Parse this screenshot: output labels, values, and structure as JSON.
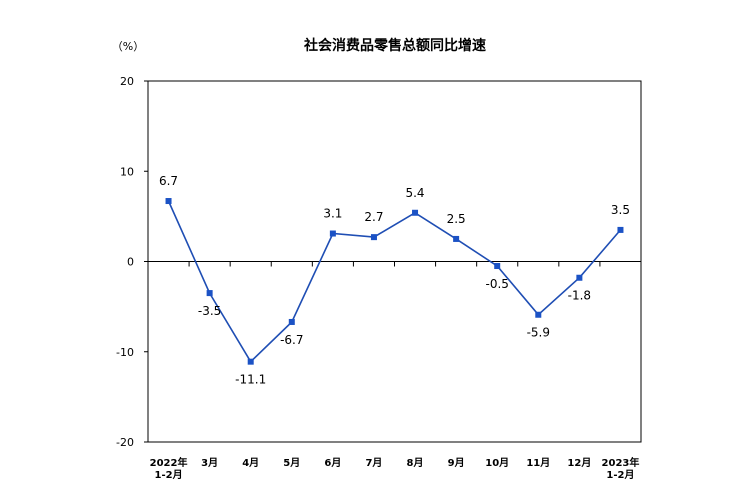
{
  "chart_data": {
    "type": "line",
    "title": "社会消费品零售总额同比增速",
    "unit": "（%）",
    "categories": [
      [
        "2022年",
        "1-2月"
      ],
      [
        "3月"
      ],
      [
        "4月"
      ],
      [
        "5月"
      ],
      [
        "6月"
      ],
      [
        "7月"
      ],
      [
        "8月"
      ],
      [
        "9月"
      ],
      [
        "10月"
      ],
      [
        "11月"
      ],
      [
        "12月"
      ],
      [
        "2023年",
        "1-2月"
      ]
    ],
    "values": [
      6.7,
      -3.5,
      -11.1,
      -6.7,
      3.1,
      2.7,
      5.4,
      2.5,
      -0.5,
      -5.9,
      -1.8,
      3.5
    ],
    "value_labels": [
      "6.7",
      "-3.5",
      "-11.1",
      "-6.7",
      "3.1",
      "2.7",
      "5.4",
      "2.5",
      "-0.5",
      "-5.9",
      "-1.8",
      "3.5"
    ],
    "label_placement": [
      "above",
      "below",
      "below",
      "below",
      "above",
      "above",
      "above",
      "above",
      "below",
      "below",
      "below",
      "above"
    ],
    "yticks": [
      "20",
      "10",
      "0",
      "-10",
      "-20"
    ],
    "ylim": [
      -20,
      20
    ],
    "grid": false,
    "series_color": "#1f4eb4",
    "marker_color": "#1b52c5"
  }
}
